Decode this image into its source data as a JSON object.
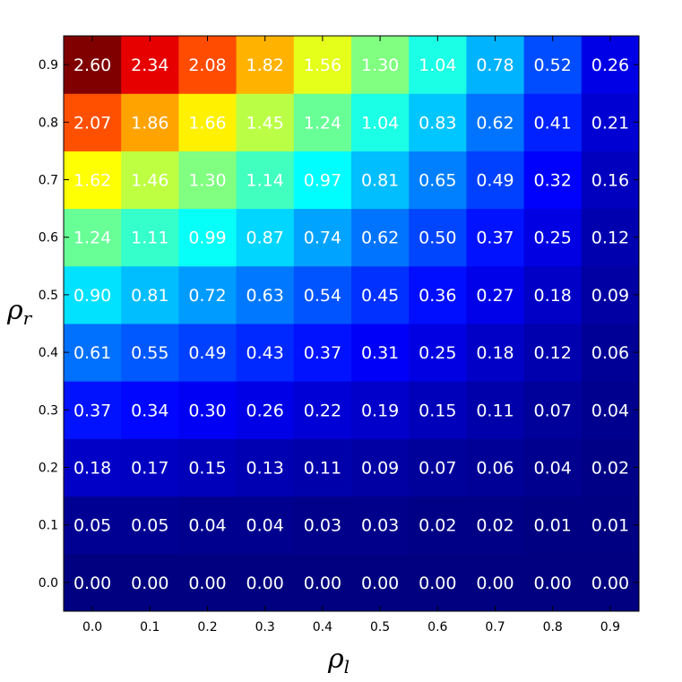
{
  "chart_data": {
    "type": "heatmap",
    "title": "",
    "xlabel": "ρ",
    "xlabel_sub": "l",
    "ylabel": "ρ",
    "ylabel_sub": "r",
    "x_ticks": [
      "0.0",
      "0.1",
      "0.2",
      "0.3",
      "0.4",
      "0.5",
      "0.6",
      "0.7",
      "0.8",
      "0.9"
    ],
    "y_ticks": [
      "0.0",
      "0.1",
      "0.2",
      "0.3",
      "0.4",
      "0.5",
      "0.6",
      "0.7",
      "0.8",
      "0.9"
    ],
    "colormap": "jet",
    "color_range": [
      0.0,
      2.6
    ],
    "values": [
      [
        "0.00",
        "0.00",
        "0.00",
        "0.00",
        "0.00",
        "0.00",
        "0.00",
        "0.00",
        "0.00",
        "0.00"
      ],
      [
        "0.05",
        "0.05",
        "0.04",
        "0.04",
        "0.03",
        "0.03",
        "0.02",
        "0.02",
        "0.01",
        "0.01"
      ],
      [
        "0.18",
        "0.17",
        "0.15",
        "0.13",
        "0.11",
        "0.09",
        "0.07",
        "0.06",
        "0.04",
        "0.02"
      ],
      [
        "0.37",
        "0.34",
        "0.30",
        "0.26",
        "0.22",
        "0.19",
        "0.15",
        "0.11",
        "0.07",
        "0.04"
      ],
      [
        "0.61",
        "0.55",
        "0.49",
        "0.43",
        "0.37",
        "0.31",
        "0.25",
        "0.18",
        "0.12",
        "0.06"
      ],
      [
        "0.90",
        "0.81",
        "0.72",
        "0.63",
        "0.54",
        "0.45",
        "0.36",
        "0.27",
        "0.18",
        "0.09"
      ],
      [
        "1.24",
        "1.11",
        "0.99",
        "0.87",
        "0.74",
        "0.62",
        "0.50",
        "0.37",
        "0.25",
        "0.12"
      ],
      [
        "1.62",
        "1.46",
        "1.30",
        "1.14",
        "0.97",
        "0.81",
        "0.65",
        "0.49",
        "0.32",
        "0.16"
      ],
      [
        "2.07",
        "1.86",
        "1.66",
        "1.45",
        "1.24",
        "1.04",
        "0.83",
        "0.62",
        "0.41",
        "0.21"
      ],
      [
        "2.60",
        "2.34",
        "2.08",
        "1.82",
        "1.56",
        "1.30",
        "1.04",
        "0.78",
        "0.52",
        "0.26"
      ]
    ]
  }
}
